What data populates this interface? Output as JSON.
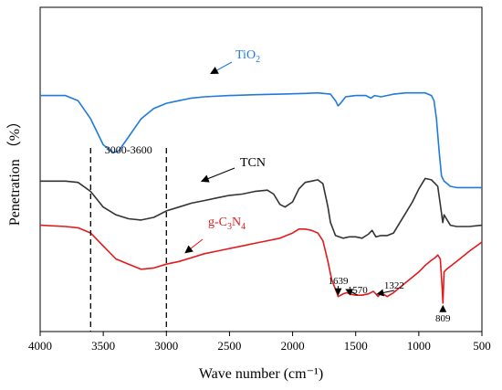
{
  "chart_data": {
    "type": "line",
    "xlabel": "Wave number (cm⁻¹)",
    "ylabel": "Penetration （%）",
    "xlim": [
      4000,
      500
    ],
    "x_reversed": true,
    "x_ticks": [
      4000,
      3500,
      3000,
      2500,
      2000,
      1500,
      1000,
      500
    ],
    "y_ticks_shown": false,
    "grid": false,
    "region_label": "3000-3600",
    "region_bounds": [
      3600,
      3000
    ],
    "series": [
      {
        "name": "TiO2",
        "name_base": "TiO",
        "name_sub": "2",
        "color": "#1e7bdc",
        "points": [
          [
            4000,
            76
          ],
          [
            3900,
            76
          ],
          [
            3800,
            76
          ],
          [
            3700,
            74
          ],
          [
            3600,
            67
          ],
          [
            3500,
            57
          ],
          [
            3420,
            54
          ],
          [
            3380,
            54.5
          ],
          [
            3300,
            60
          ],
          [
            3200,
            67
          ],
          [
            3100,
            71
          ],
          [
            3000,
            73
          ],
          [
            2900,
            74
          ],
          [
            2800,
            75
          ],
          [
            2700,
            75.5
          ],
          [
            2500,
            76
          ],
          [
            2300,
            76.3
          ],
          [
            2100,
            76.5
          ],
          [
            1900,
            76.8
          ],
          [
            1800,
            77
          ],
          [
            1700,
            76.5
          ],
          [
            1660,
            74
          ],
          [
            1640,
            72
          ],
          [
            1620,
            73
          ],
          [
            1580,
            75.5
          ],
          [
            1500,
            76
          ],
          [
            1420,
            76
          ],
          [
            1380,
            75
          ],
          [
            1350,
            76
          ],
          [
            1300,
            75.5
          ],
          [
            1200,
            76.5
          ],
          [
            1100,
            77
          ],
          [
            1000,
            77
          ],
          [
            950,
            77
          ],
          [
            900,
            76
          ],
          [
            880,
            74
          ],
          [
            860,
            67
          ],
          [
            840,
            55
          ],
          [
            820,
            45
          ],
          [
            800,
            43
          ],
          [
            750,
            41
          ],
          [
            700,
            40.5
          ],
          [
            600,
            40.5
          ],
          [
            500,
            40.5
          ]
        ]
      },
      {
        "name": "TCN",
        "name_base": "TCN",
        "name_sub": "",
        "color": "#333333",
        "points": [
          [
            4000,
            43
          ],
          [
            3800,
            43
          ],
          [
            3700,
            42.5
          ],
          [
            3600,
            39
          ],
          [
            3500,
            33
          ],
          [
            3400,
            30
          ],
          [
            3300,
            28.5
          ],
          [
            3200,
            28
          ],
          [
            3100,
            29
          ],
          [
            3000,
            31.5
          ],
          [
            2900,
            33
          ],
          [
            2800,
            34.5
          ],
          [
            2700,
            35.5
          ],
          [
            2600,
            36.5
          ],
          [
            2500,
            37.5
          ],
          [
            2400,
            38
          ],
          [
            2300,
            39
          ],
          [
            2200,
            39.5
          ],
          [
            2150,
            38
          ],
          [
            2100,
            34
          ],
          [
            2060,
            33
          ],
          [
            2000,
            35
          ],
          [
            1950,
            40
          ],
          [
            1900,
            42.5
          ],
          [
            1850,
            43
          ],
          [
            1800,
            43.5
          ],
          [
            1760,
            42
          ],
          [
            1720,
            33
          ],
          [
            1700,
            27
          ],
          [
            1660,
            22
          ],
          [
            1600,
            21
          ],
          [
            1550,
            21.5
          ],
          [
            1500,
            21.5
          ],
          [
            1450,
            21
          ],
          [
            1400,
            22.5
          ],
          [
            1370,
            24
          ],
          [
            1340,
            21.5
          ],
          [
            1300,
            22
          ],
          [
            1250,
            22
          ],
          [
            1200,
            23
          ],
          [
            1150,
            27
          ],
          [
            1100,
            31
          ],
          [
            1050,
            35
          ],
          [
            1000,
            40
          ],
          [
            950,
            44
          ],
          [
            900,
            43.5
          ],
          [
            870,
            42
          ],
          [
            850,
            41
          ],
          [
            830,
            34
          ],
          [
            810,
            27
          ],
          [
            800,
            30
          ],
          [
            750,
            26
          ],
          [
            700,
            25.5
          ],
          [
            600,
            25.5
          ],
          [
            500,
            26
          ]
        ]
      },
      {
        "name": "g-C3N4",
        "name_base": "g-C",
        "name_sub": "3",
        "name_mid": "N",
        "name_sub2": "4",
        "color": "#e31a1c",
        "points": [
          [
            4000,
            26
          ],
          [
            3800,
            25.5
          ],
          [
            3700,
            25
          ],
          [
            3600,
            23
          ],
          [
            3500,
            18
          ],
          [
            3400,
            13
          ],
          [
            3300,
            11
          ],
          [
            3200,
            9
          ],
          [
            3100,
            9.5
          ],
          [
            3000,
            11
          ],
          [
            2900,
            12
          ],
          [
            2800,
            13.5
          ],
          [
            2700,
            15
          ],
          [
            2600,
            16
          ],
          [
            2500,
            17
          ],
          [
            2400,
            18
          ],
          [
            2300,
            19
          ],
          [
            2200,
            20
          ],
          [
            2100,
            21
          ],
          [
            2000,
            23
          ],
          [
            1950,
            24.5
          ],
          [
            1900,
            24.5
          ],
          [
            1850,
            24
          ],
          [
            1800,
            23
          ],
          [
            1760,
            20
          ],
          [
            1720,
            12
          ],
          [
            1690,
            5
          ],
          [
            1650,
            0
          ],
          [
            1639,
            -1.5
          ],
          [
            1600,
            -0.5
          ],
          [
            1570,
            0
          ],
          [
            1550,
            -0.5
          ],
          [
            1500,
            -1
          ],
          [
            1450,
            -1
          ],
          [
            1400,
            -0.5
          ],
          [
            1360,
            0.5
          ],
          [
            1340,
            -0.5
          ],
          [
            1322,
            -1.5
          ],
          [
            1300,
            0
          ],
          [
            1250,
            -1.5
          ],
          [
            1200,
            0
          ],
          [
            1150,
            2
          ],
          [
            1100,
            4
          ],
          [
            1000,
            8
          ],
          [
            950,
            10.5
          ],
          [
            900,
            12.5
          ],
          [
            870,
            13.5
          ],
          [
            850,
            14.5
          ],
          [
            830,
            13
          ],
          [
            815,
            2
          ],
          [
            809,
            -4
          ],
          [
            800,
            8
          ],
          [
            780,
            9
          ],
          [
            700,
            12
          ],
          [
            600,
            16
          ],
          [
            500,
            19.5
          ]
        ]
      }
    ],
    "annotations": [
      {
        "text": "1639",
        "x": 1639
      },
      {
        "text": "1570",
        "x": 1570
      },
      {
        "text": "1322",
        "x": 1322
      },
      {
        "text": "809",
        "x": 809
      }
    ]
  }
}
